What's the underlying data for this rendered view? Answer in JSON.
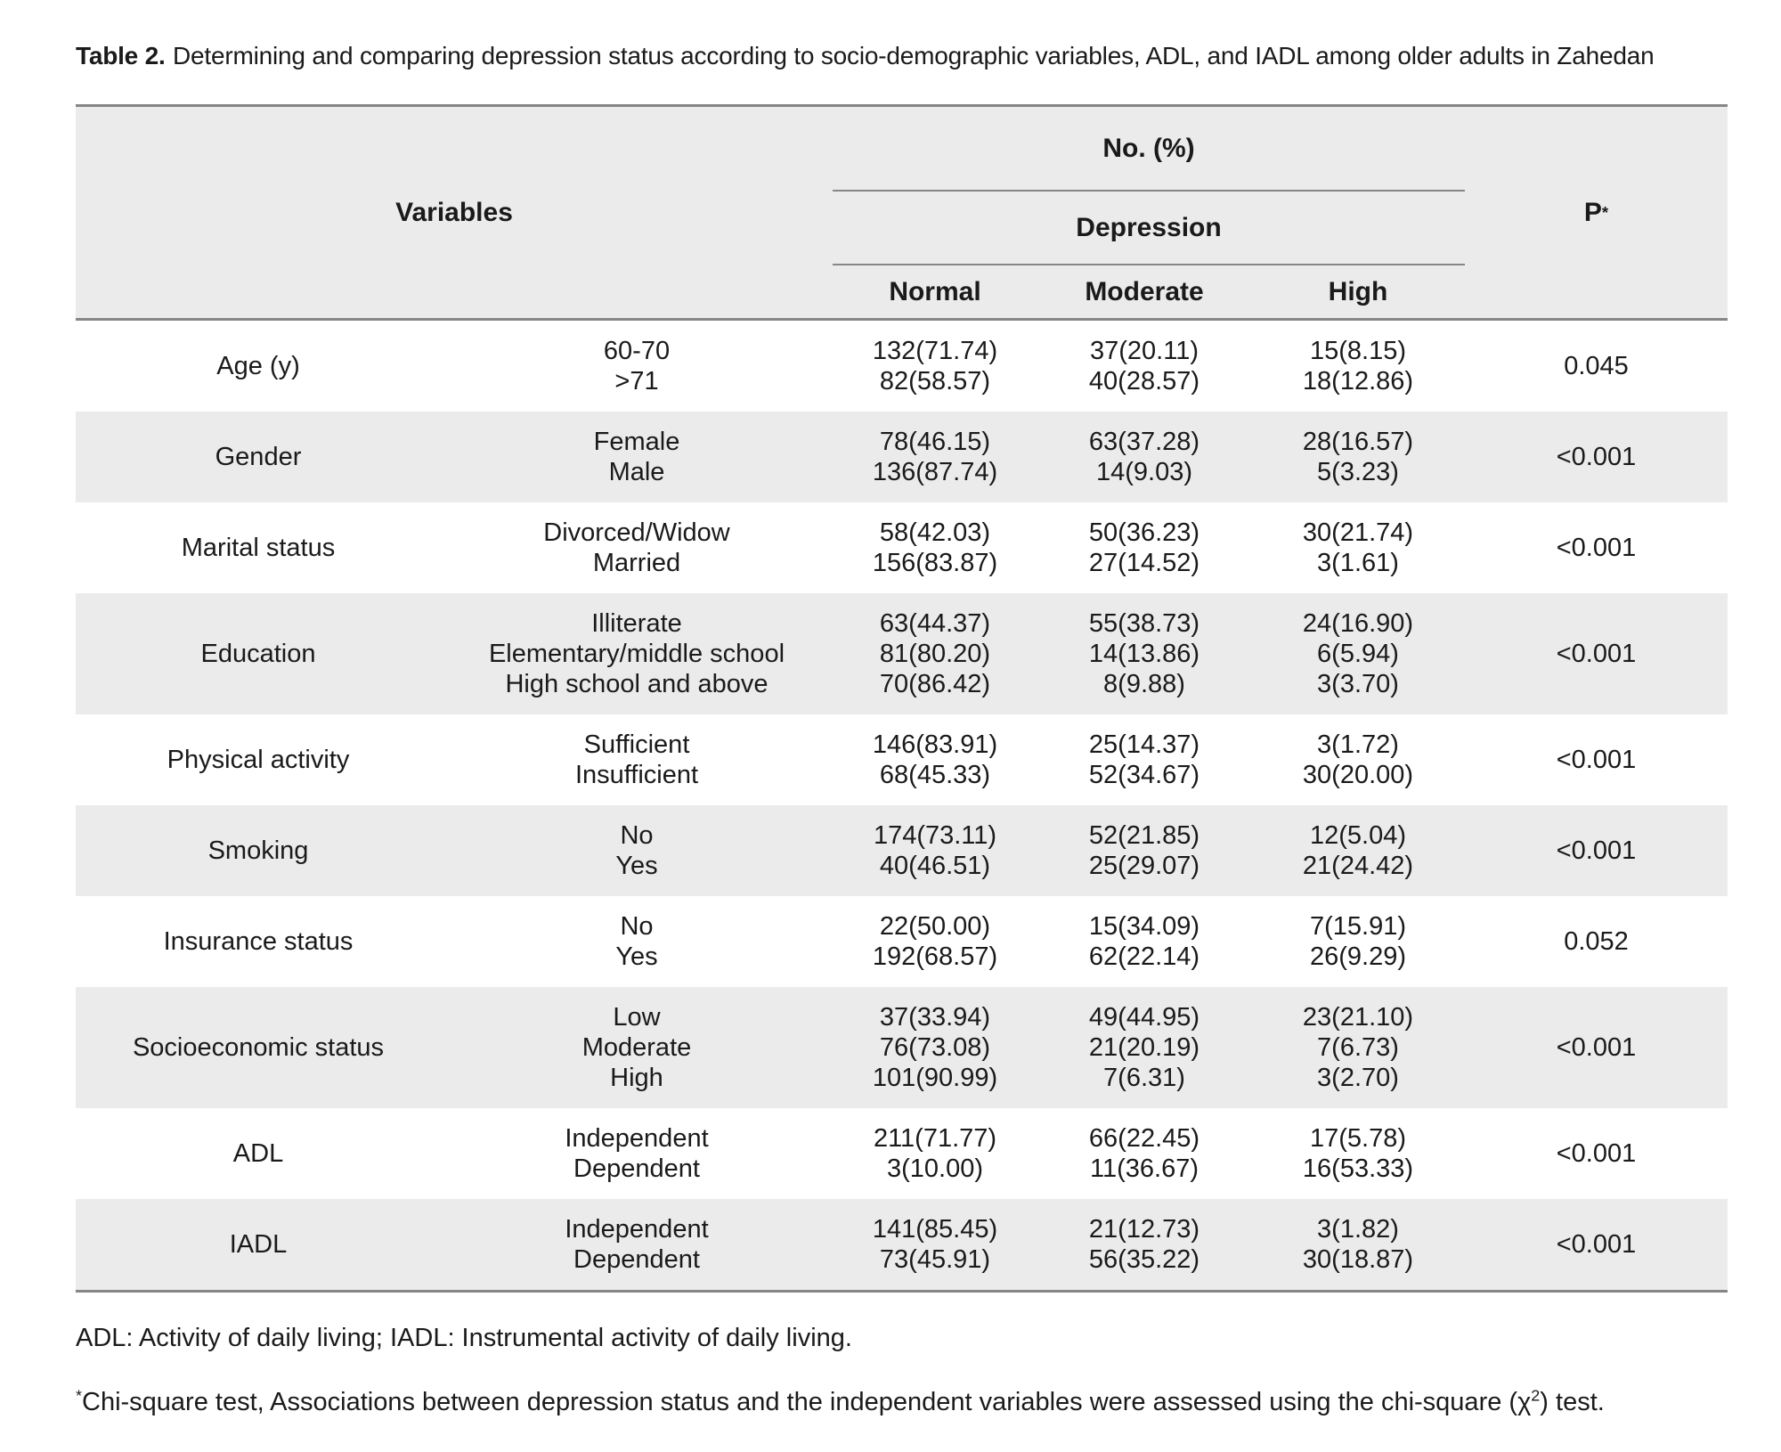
{
  "title": {
    "label": "Table 2.",
    "text": "Determining and comparing depression status according to socio-demographic variables, ADL, and IADL among older adults in Zahedan"
  },
  "table": {
    "header": {
      "variables": "Variables",
      "group": "No. (%)",
      "subgroup": "Depression",
      "columns": [
        "Normal",
        "Moderate",
        "High"
      ],
      "p_label": "P",
      "p_sup": "*"
    },
    "rows": [
      {
        "variable": "Age (y)",
        "categories": [
          "60-70",
          ">71"
        ],
        "normal": [
          "132(71.74)",
          "82(58.57)"
        ],
        "moderate": [
          "37(20.11)",
          "40(28.57)"
        ],
        "high": [
          "15(8.15)",
          "18(12.86)"
        ],
        "p": "0.045"
      },
      {
        "variable": "Gender",
        "categories": [
          "Female",
          "Male"
        ],
        "normal": [
          "78(46.15)",
          "136(87.74)"
        ],
        "moderate": [
          "63(37.28)",
          "14(9.03)"
        ],
        "high": [
          "28(16.57)",
          "5(3.23)"
        ],
        "p": "<0.001"
      },
      {
        "variable": "Marital status",
        "categories": [
          "Divorced/Widow",
          "Married"
        ],
        "normal": [
          "58(42.03)",
          "156(83.87)"
        ],
        "moderate": [
          "50(36.23)",
          "27(14.52)"
        ],
        "high": [
          "30(21.74)",
          "3(1.61)"
        ],
        "p": "<0.001"
      },
      {
        "variable": "Education",
        "categories": [
          "Illiterate",
          "Elementary/middle school",
          "High school and above"
        ],
        "normal": [
          "63(44.37)",
          "81(80.20)",
          "70(86.42)"
        ],
        "moderate": [
          "55(38.73)",
          "14(13.86)",
          "8(9.88)"
        ],
        "high": [
          "24(16.90)",
          "6(5.94)",
          "3(3.70)"
        ],
        "p": "<0.001"
      },
      {
        "variable": "Physical activity",
        "categories": [
          "Sufficient",
          "Insufficient"
        ],
        "normal": [
          "146(83.91)",
          "68(45.33)"
        ],
        "moderate": [
          "25(14.37)",
          "52(34.67)"
        ],
        "high": [
          "3(1.72)",
          "30(20.00)"
        ],
        "p": "<0.001"
      },
      {
        "variable": "Smoking",
        "categories": [
          "No",
          "Yes"
        ],
        "normal": [
          "174(73.11)",
          "40(46.51)"
        ],
        "moderate": [
          "52(21.85)",
          "25(29.07)"
        ],
        "high": [
          "12(5.04)",
          "21(24.42)"
        ],
        "p": "<0.001"
      },
      {
        "variable": "Insurance status",
        "categories": [
          "No",
          "Yes"
        ],
        "normal": [
          "22(50.00)",
          "192(68.57)"
        ],
        "moderate": [
          "15(34.09)",
          "62(22.14)"
        ],
        "high": [
          "7(15.91)",
          "26(9.29)"
        ],
        "p": "0.052"
      },
      {
        "variable": "Socioeconomic status",
        "categories": [
          "Low",
          "Moderate",
          "High"
        ],
        "normal": [
          "37(33.94)",
          "76(73.08)",
          "101(90.99)"
        ],
        "moderate": [
          "49(44.95)",
          "21(20.19)",
          "7(6.31)"
        ],
        "high": [
          "23(21.10)",
          "7(6.73)",
          "3(2.70)"
        ],
        "p": "<0.001"
      },
      {
        "variable": "ADL",
        "categories": [
          "Independent",
          "Dependent"
        ],
        "normal": [
          "211(71.77)",
          "3(10.00)"
        ],
        "moderate": [
          "66(22.45)",
          "11(36.67)"
        ],
        "high": [
          "17(5.78)",
          "16(53.33)"
        ],
        "p": "<0.001"
      },
      {
        "variable": "IADL",
        "categories": [
          "Independent",
          "Dependent"
        ],
        "normal": [
          "141(85.45)",
          "73(45.91)"
        ],
        "moderate": [
          "21(12.73)",
          "56(35.22)"
        ],
        "high": [
          "3(1.82)",
          "30(18.87)"
        ],
        "p": "<0.001"
      }
    ]
  },
  "footnotes": {
    "abbreviations": "ADL: Activity of daily living; IADL: Instrumental activity of daily living.",
    "chi_square": {
      "sup": "*",
      "text_before_sup2": "Chi-square test, Associations between depression status and the independent variables were assessed using the chi-square (χ",
      "sup2": "2",
      "text_after_sup2": ") test."
    }
  },
  "colors": {
    "stripe_gray": "#ebebeb",
    "border_gray": "#868686",
    "text": "#1a1a1a",
    "background": "#ffffff"
  }
}
